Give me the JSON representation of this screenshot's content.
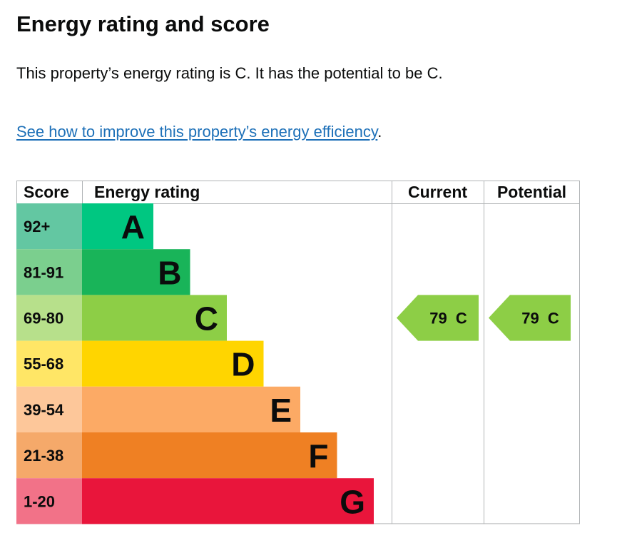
{
  "page": {
    "title": "Energy rating and score",
    "summary": "This property’s energy rating is C. It has the potential to be C.",
    "link_text": "See how to improve this property’s energy efficiency",
    "link_suffix": "."
  },
  "chart_data": {
    "type": "bar",
    "headers": {
      "score": "Score",
      "rating": "Energy rating",
      "current": "Current",
      "potential": "Potential"
    },
    "bands": [
      {
        "range": "92+",
        "letter": "A",
        "color": "#008054",
        "score_bg": "#63c7a2",
        "bar": "#00c781"
      },
      {
        "range": "81-91",
        "letter": "B",
        "color": "#19b459",
        "score_bg": "#7bcf8e",
        "bar": "#19b459"
      },
      {
        "range": "69-80",
        "letter": "C",
        "color": "#8dce46",
        "score_bg": "#b7e08b",
        "bar": "#8dce46"
      },
      {
        "range": "55-68",
        "letter": "D",
        "color": "#ffd500",
        "score_bg": "#ffe666",
        "bar": "#ffd500"
      },
      {
        "range": "39-54",
        "letter": "E",
        "color": "#fcaa65",
        "score_bg": "#fdc79a",
        "bar": "#fcaa65"
      },
      {
        "range": "21-38",
        "letter": "F",
        "color": "#ef8023",
        "score_bg": "#f5a96a",
        "bar": "#ef8023"
      },
      {
        "range": "1-20",
        "letter": "G",
        "color": "#e9153b",
        "score_bg": "#f27288",
        "bar": "#e9153b"
      }
    ],
    "current": {
      "score": 79,
      "letter": "C",
      "label": "79  C",
      "color": "#8dce46"
    },
    "potential": {
      "score": 79,
      "letter": "C",
      "label": "79  C",
      "color": "#8dce46"
    }
  }
}
